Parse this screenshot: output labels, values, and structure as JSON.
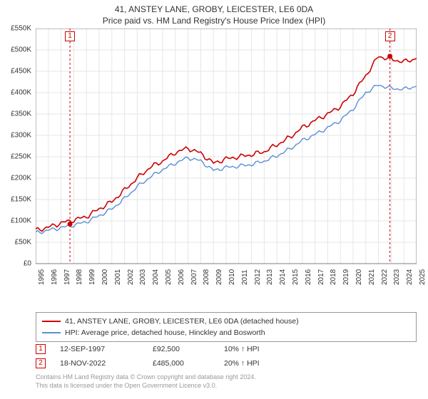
{
  "title": {
    "line1": "41, ANSTEY LANE, GROBY, LEICESTER, LE6 0DA",
    "line2": "Price paid vs. HM Land Registry's House Price Index (HPI)"
  },
  "chart": {
    "type": "line",
    "background_color": "#ffffff",
    "grid_color": "#e6e6e6",
    "axis_color": "#666666",
    "x": {
      "start_year": 1995,
      "end_year": 2025,
      "tick_step": 1
    },
    "y": {
      "min": 0,
      "max": 550000,
      "tick_step": 50000,
      "tick_format_prefix": "£",
      "tick_format_suffix": "K",
      "tick_divisor": 1000
    },
    "series": [
      {
        "name": "price",
        "label": "41, ANSTEY LANE, GROBY, LEICESTER, LE6 0DA (detached house)",
        "color": "#cc0000",
        "width": 1.6,
        "points_yearly": [
          78000,
          85000,
          95000,
          102000,
          110000,
          128000,
          145000,
          172000,
          200000,
          225000,
          240000,
          260000,
          270000,
          258000,
          235000,
          245000,
          250000,
          255000,
          262000,
          278000,
          295000,
          318000,
          335000,
          350000,
          368000,
          398000,
          440000,
          485000,
          478000,
          472000,
          480000
        ]
      },
      {
        "name": "hpi",
        "label": "HPI: Average price, detached house, Hinckley and Bosworth",
        "color": "#5b8fd6",
        "width": 1.4,
        "points_yearly": [
          72000,
          78000,
          84000,
          90000,
          98000,
          112000,
          128000,
          152000,
          180000,
          202000,
          220000,
          235000,
          248000,
          240000,
          218000,
          225000,
          228000,
          232000,
          240000,
          252000,
          268000,
          288000,
          302000,
          318000,
          335000,
          362000,
          400000,
          418000,
          410000,
          408000,
          415000
        ]
      }
    ],
    "markers": [
      {
        "n": "1",
        "year": 1997.7,
        "price": 92500
      },
      {
        "n": "2",
        "year": 2022.9,
        "price": 485000
      }
    ],
    "marker_line_color": "#cc0000",
    "marker_box_border": "#cc0000",
    "marker_dot_color": "#cc0000"
  },
  "legend": {
    "rows": [
      {
        "color": "#cc0000",
        "text": "41, ANSTEY LANE, GROBY, LEICESTER, LE6 0DA (detached house)"
      },
      {
        "color": "#5b8fd6",
        "text": "HPI: Average price, detached house, Hinckley and Bosworth"
      }
    ]
  },
  "data_points": [
    {
      "n": "1",
      "date": "12-SEP-1997",
      "price": "£92,500",
      "pct": "10% ↑ HPI"
    },
    {
      "n": "2",
      "date": "18-NOV-2022",
      "price": "£485,000",
      "pct": "20% ↑ HPI"
    }
  ],
  "footer": {
    "line1": "Contains HM Land Registry data © Crown copyright and database right 2024.",
    "line2": "This data is licensed under the Open Government Licence v3.0."
  }
}
